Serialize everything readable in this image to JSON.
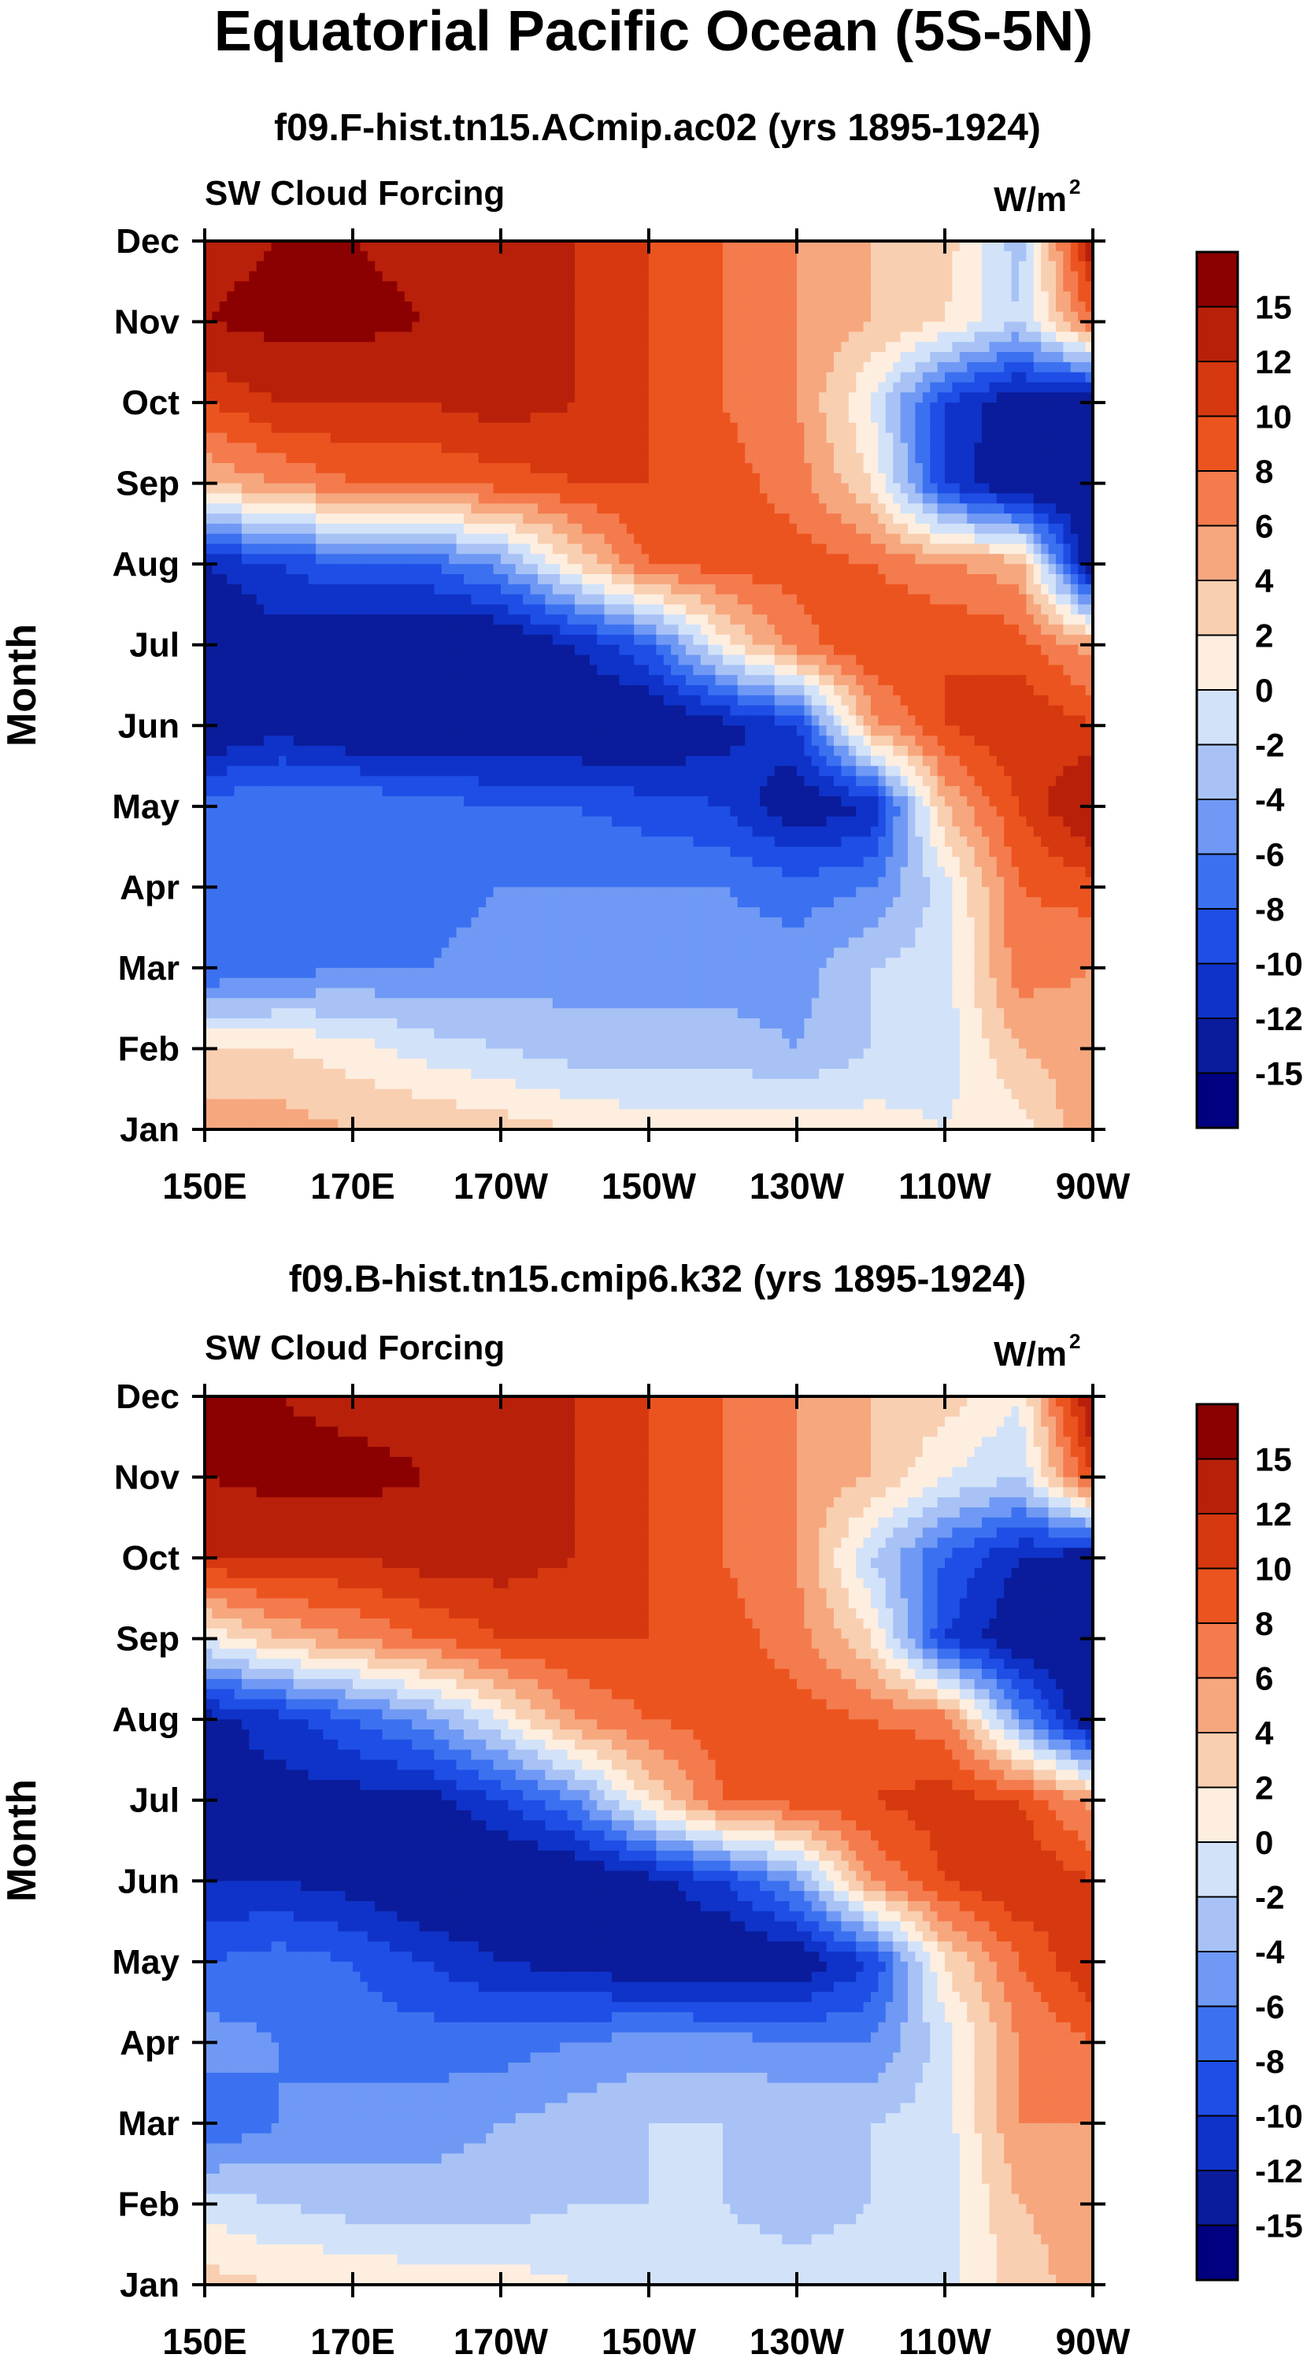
{
  "title": "Equatorial Pacific Ocean (5S-5N)",
  "colorbar_colors": [
    "#000080",
    "#0a1c9b",
    "#0f33c8",
    "#1e4ee6",
    "#3b71f0",
    "#6f99f4",
    "#a8c2f6",
    "#d2e2f9",
    "#fdeee0",
    "#f9cfb1",
    "#f6a77e",
    "#f47b4d",
    "#ec541f",
    "#d6380f",
    "#b8200a",
    "#8b0000"
  ],
  "chart_data": [
    {
      "type": "heatmap",
      "title": "f09.F-hist.tn15.ACmip.ac02 (yrs 1895-1924)",
      "left_label": "SW Cloud Forcing",
      "units": "W/m",
      "units_sup": "2",
      "ylabel": "Month",
      "x_ticks": [
        "150E",
        "170E",
        "170W",
        "150W",
        "130W",
        "110W",
        "90W"
      ],
      "y_ticks": [
        "Jan",
        "Feb",
        "Mar",
        "Apr",
        "May",
        "Jun",
        "Jul",
        "Aug",
        "Sep",
        "Oct",
        "Nov",
        "Dec"
      ],
      "xlim_deg_east": [
        150,
        270
      ],
      "colorbar_labels": [
        "15",
        "12",
        "10",
        "8",
        "6",
        "4",
        "2",
        "0",
        "-2",
        "-4",
        "-6",
        "-8",
        "-10",
        "-12",
        "-15"
      ],
      "approx_values": {
        "lon": [
          150,
          160,
          170,
          180,
          190,
          200,
          210,
          220,
          230,
          240,
          250,
          260,
          270
        ],
        "rows": [
          [
            5,
            5,
            4,
            4,
            3,
            2,
            1,
            1,
            1,
            1,
            0,
            1,
            6
          ],
          [
            2,
            2,
            1,
            -1,
            -2,
            -3,
            -3,
            -3,
            -4,
            -2,
            -1,
            4,
            5
          ],
          [
            -8,
            -7,
            -6,
            -6,
            -5,
            -5,
            -5,
            -5,
            -5,
            -2,
            -1,
            7,
            6
          ],
          [
            -8,
            -7,
            -6,
            -7,
            -6,
            -6,
            -6,
            -6,
            -7,
            -6,
            -1,
            8,
            9
          ],
          [
            -7,
            -6,
            -6,
            -7,
            -8,
            -8,
            -9,
            -10,
            -14,
            -12,
            4,
            10,
            15
          ],
          [
            -15,
            -13,
            -15,
            -15,
            -15,
            -15,
            -15,
            -13,
            -10,
            5,
            10,
            12,
            10
          ],
          [
            -15,
            -13,
            -15,
            -15,
            -15,
            -12,
            -8,
            1,
            7,
            10,
            10,
            9,
            5
          ],
          [
            -12,
            -10,
            -8,
            -8,
            -5,
            2,
            8,
            9,
            9,
            8,
            6,
            5,
            -15
          ],
          [
            4,
            6,
            8,
            8,
            9,
            10,
            10,
            9,
            7,
            2,
            -10,
            -15,
            -15
          ],
          [
            10,
            12,
            12,
            12,
            13,
            12,
            10,
            8,
            6,
            0,
            -10,
            -14,
            -15
          ],
          [
            15,
            16,
            16,
            15,
            14,
            12,
            10,
            8,
            6,
            4,
            2,
            -2,
            8
          ],
          [
            14,
            15,
            15,
            14,
            13,
            12,
            10,
            8,
            6,
            4,
            3,
            -3,
            14
          ]
        ]
      }
    },
    {
      "type": "heatmap",
      "title": "f09.B-hist.tn15.cmip6.k32 (yrs 1895-1924)",
      "left_label": "SW Cloud Forcing",
      "units": "W/m",
      "units_sup": "2",
      "ylabel": "Month",
      "x_ticks": [
        "150E",
        "170E",
        "170W",
        "150W",
        "130W",
        "110W",
        "90W"
      ],
      "y_ticks": [
        "Jan",
        "Feb",
        "Mar",
        "Apr",
        "May",
        "Jun",
        "Jul",
        "Aug",
        "Sep",
        "Oct",
        "Nov",
        "Dec"
      ],
      "xlim_deg_east": [
        150,
        270
      ],
      "colorbar_labels": [
        "15",
        "12",
        "10",
        "8",
        "6",
        "4",
        "2",
        "0",
        "-2",
        "-4",
        "-6",
        "-8",
        "-10",
        "-12",
        "-15"
      ],
      "approx_values": {
        "lon": [
          150,
          160,
          170,
          180,
          190,
          200,
          210,
          220,
          230,
          240,
          250,
          260,
          270
        ],
        "rows": [
          [
            3,
            2,
            2,
            1,
            1,
            0,
            -1,
            -1,
            -1,
            -1,
            -1,
            3,
            5
          ],
          [
            -1,
            -2,
            -3,
            -3,
            -3,
            -2,
            -2,
            -2,
            -3,
            -2,
            -1,
            4,
            5
          ],
          [
            -8,
            -6,
            -5,
            -5,
            -4,
            -3,
            -2,
            -2,
            -2,
            -2,
            -1,
            6,
            6
          ],
          [
            -5,
            -6,
            -7,
            -7,
            -7,
            -6,
            -5,
            -5,
            -6,
            -6,
            -1,
            6,
            8
          ],
          [
            -8,
            -7,
            -8,
            -10,
            -12,
            -13,
            -14,
            -15,
            -14,
            -10,
            2,
            8,
            12
          ],
          [
            -12,
            -12,
            -13,
            -15,
            -15,
            -15,
            -13,
            -10,
            -5,
            6,
            10,
            12,
            10
          ],
          [
            -12,
            -13,
            -13,
            -13,
            -10,
            -6,
            2,
            8,
            9,
            10,
            11,
            10,
            5
          ],
          [
            -13,
            -11,
            -8,
            -5,
            0,
            6,
            8,
            9,
            9,
            8,
            7,
            -5,
            -15
          ],
          [
            0,
            4,
            6,
            8,
            10,
            10,
            10,
            9,
            7,
            2,
            -10,
            -14,
            -15
          ],
          [
            12,
            12,
            12,
            13,
            13,
            12,
            10,
            8,
            6,
            -2,
            -8,
            -12,
            -14
          ],
          [
            15,
            16,
            16,
            15,
            14,
            12,
            10,
            8,
            6,
            4,
            0,
            -2,
            10
          ],
          [
            15,
            15,
            14,
            14,
            13,
            12,
            10,
            8,
            6,
            4,
            3,
            0,
            15
          ]
        ]
      }
    }
  ]
}
